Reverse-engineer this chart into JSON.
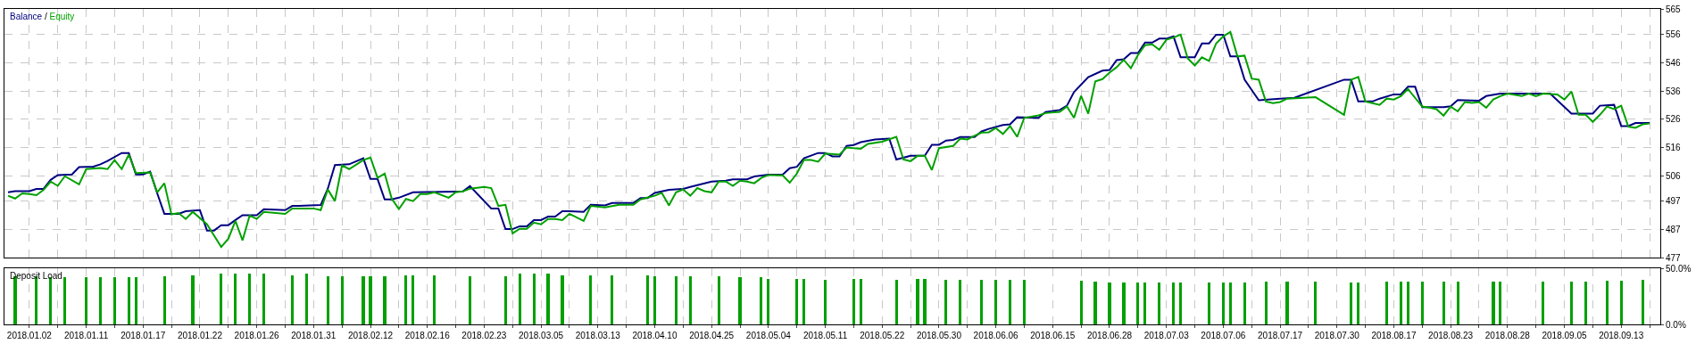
{
  "chart_data": [
    {
      "type": "line",
      "legend": "top left",
      "grid": true,
      "tick_labels": "y",
      "line_style": "solid",
      "annotations": [
        "/"
      ],
      "categories": [
        null,
        null,
        null,
        "2018.01.02",
        null,
        null,
        null,
        null,
        null,
        null,
        null,
        "2018.01.11",
        null,
        null,
        null,
        null,
        null,
        null,
        null,
        "2018.01.17",
        null,
        null,
        null,
        null,
        null,
        null,
        null,
        "2018.01.22",
        null,
        null,
        null,
        null,
        null,
        null,
        null,
        "2018.01.26",
        null,
        null,
        null,
        null,
        null,
        null,
        null,
        "2018.01.31",
        null,
        null,
        null,
        null,
        null,
        null,
        null,
        "2018.02.12",
        null,
        null,
        null,
        null,
        null,
        null,
        null,
        "2018.02.16",
        null,
        null,
        null,
        null,
        null,
        null,
        null,
        "2018.02.23",
        null,
        null,
        null,
        null,
        null,
        null,
        null,
        "2018.03.05",
        null,
        null,
        null,
        null,
        null,
        null,
        null,
        "2018.03.13",
        null,
        null,
        null,
        null,
        null,
        null,
        null,
        "2018.04.10",
        null,
        null,
        null,
        null,
        null,
        null,
        null,
        "2018.04.25",
        null,
        null,
        null,
        null,
        null,
        null,
        null,
        "2018.05.04",
        null,
        null,
        null,
        null,
        null,
        null,
        null,
        "2018.05.11",
        null,
        null,
        null,
        null,
        null,
        null,
        null,
        "2018.05.22",
        null,
        null,
        null,
        null,
        null,
        null,
        null,
        "2018.05.30",
        null,
        null,
        null,
        null,
        null,
        null,
        null,
        "2018.06.06",
        null,
        null,
        null,
        null,
        null,
        null,
        null,
        "2018.06.15",
        null,
        null,
        null,
        null,
        null,
        null,
        null,
        "2018.06.28",
        null,
        null,
        null,
        null,
        null,
        null,
        null,
        "2018.07.03",
        null,
        null,
        null,
        null,
        null,
        null,
        null,
        "2018.07.06",
        null,
        null,
        null,
        null,
        null,
        null,
        null,
        "2018.07.17",
        null,
        null,
        null,
        null,
        null,
        null,
        null,
        "2018.07.30",
        null,
        null,
        null,
        null,
        null,
        null,
        null,
        "2018.08.17",
        null,
        null,
        null,
        null,
        null,
        null,
        null,
        "2018.08.23",
        null,
        null,
        null,
        null,
        null,
        null,
        null,
        "2018.08.28",
        null,
        null,
        null,
        null,
        null,
        null,
        null,
        "2018.09.05",
        null,
        null,
        null,
        null,
        null,
        null,
        null,
        "2018.09.13",
        null,
        null,
        null,
        null,
        null
      ],
      "ylim": [
        477,
        565
      ],
      "yticks": [
        477,
        487,
        497,
        506,
        516,
        526,
        536,
        546,
        556,
        565
      ],
      "series": [
        {
          "name": "Balance",
          "color": "#000080",
          "values": [
            500.2,
            500.6,
            null,
            500.6,
            501.4,
            501.4,
            504.6,
            506.3,
            null,
            506.5,
            509.1,
            null,
            509.3,
            510.1,
            511.3,
            null,
            514.1,
            514.1,
            506.5,
            506.5,
            507.5,
            499.8,
            492.6,
            null,
            492.6,
            493.5,
            null,
            493.9,
            486.7,
            486.7,
            488.6,
            488.6,
            490.4,
            492.1,
            null,
            492.1,
            494.2,
            null,
            null,
            493.9,
            495.4,
            495.4,
            null,
            null,
            495.7,
            501.5,
            509.8,
            null,
            510.1,
            null,
            512.2,
            504.9,
            504.9,
            497.7,
            497.7,
            498.3,
            null,
            500.2,
            null,
            null,
            null,
            null,
            null,
            null,
            500.5,
            502.4,
            null,
            null,
            494.5,
            494.5,
            487.2,
            487.2,
            488.2,
            488.2,
            490.4,
            490.4,
            491.6,
            491.6,
            493.5,
            493.5,
            null,
            493.3,
            495.8,
            null,
            495.6,
            496.4,
            null,
            null,
            496.4,
            498.2,
            498.2,
            500,
            null,
            501.1,
            null,
            501.4,
            502.1,
            null,
            null,
            504,
            null,
            504.3,
            504.8,
            null,
            504.8,
            505.8,
            null,
            506.4,
            null,
            506.4,
            508.7,
            509.2,
            512.2,
            null,
            514.1,
            514.1,
            512.9,
            512.9,
            516.6,
            516.9,
            517.9,
            null,
            518.9,
            null,
            519.2,
            511.8,
            null,
            513.1,
            null,
            513.1,
            517,
            517,
            518.5,
            518.7,
            519.7,
            null,
            519.7,
            521.7,
            522.6,
            null,
            524,
            524.2,
            526.7,
            null,
            null,
            526.5,
            528.6,
            null,
            529.3,
            530.8,
            535.6,
            null,
            540.9,
            null,
            543.2,
            543.4,
            546.9,
            547.2,
            549.4,
            549.4,
            553.1,
            553.1,
            554.5,
            554.5,
            555.3,
            547.9,
            null,
            547.9,
            552.8,
            552.8,
            555.9,
            555.9,
            548.2,
            548.2,
            540,
            null,
            532.7,
            null,
            null,
            533.3,
            null,
            533.6,
            null,
            null,
            null,
            null,
            null,
            null,
            540,
            540,
            532.3,
            null,
            532.3,
            533.3,
            null,
            534.8,
            534.8,
            537.5,
            537.5,
            530.3,
            null,
            null,
            530.3,
            530.6,
            532.8,
            null,
            null,
            532.6,
            534.2,
            null,
            535.1,
            null,
            null,
            null,
            null,
            null,
            null,
            535.1,
            null,
            null,
            528,
            null,
            null,
            528,
            530.8,
            null,
            531.1,
            523.6,
            523.6,
            524.7,
            null,
            524.7,
            null
          ]
        },
        {
          "name": "Equity",
          "color": "#00a000",
          "values": [
            499,
            498,
            499.8,
            499.6,
            499.2,
            501.1,
            504,
            502.5,
            505.9,
            null,
            503,
            508.4,
            null,
            508.8,
            508.4,
            511.6,
            508.4,
            513.5,
            507,
            null,
            507.2,
            500.2,
            503.4,
            492.4,
            492.9,
            490.8,
            493.3,
            null,
            488.9,
            null,
            480.9,
            483.8,
            490.1,
            483.2,
            492,
            490.8,
            493.3,
            null,
            null,
            492.6,
            494.5,
            null,
            null,
            494.5,
            493.9,
            501.2,
            497.1,
            509.7,
            508.4,
            null,
            511.6,
            512.5,
            505.3,
            506.8,
            497.9,
            494.3,
            497.9,
            497.1,
            499.6,
            499.6,
            500.2,
            null,
            498.3,
            500.2,
            500.5,
            501.5,
            null,
            502.1,
            501.7,
            495.4,
            495.8,
            485.7,
            487.3,
            487.3,
            489.5,
            488.9,
            490.8,
            490.8,
            490.4,
            492.6,
            null,
            490.1,
            495.4,
            null,
            494.9,
            null,
            495.8,
            null,
            495.8,
            497.7,
            null,
            499,
            500,
            495.6,
            500.2,
            501.2,
            499,
            501.7,
            500.6,
            500.2,
            504,
            504,
            502.5,
            504.3,
            504,
            503.4,
            505.3,
            506.3,
            null,
            506.2,
            503.6,
            506.8,
            511.6,
            511.6,
            511,
            513.9,
            null,
            513.5,
            516,
            null,
            515.6,
            517.3,
            null,
            518.1,
            null,
            519.8,
            511.8,
            511.2,
            513.1,
            513.1,
            508.1,
            515.8,
            null,
            516.6,
            519.2,
            518.9,
            520.2,
            521.3,
            521.4,
            522.9,
            520.8,
            523.6,
            519.8,
            526.5,
            null,
            527.4,
            528.2,
            null,
            528.6,
            530.5,
            526.5,
            534.3,
            528,
            539.4,
            540.2,
            542.5,
            544.4,
            547,
            544.1,
            548.7,
            552.2,
            552.5,
            550.6,
            554.1,
            554.9,
            555.9,
            547.5,
            545,
            547.9,
            546.6,
            552.8,
            555.3,
            556.9,
            548.2,
            548.5,
            540.4,
            540,
            532.3,
            531.7,
            532.1,
            533.3,
            null,
            null,
            null,
            533.8,
            null,
            null,
            null,
            527.6,
            540,
            541,
            532.3,
            531.7,
            531.1,
            533.3,
            533,
            534.2,
            536.7,
            null,
            530.5,
            530.1,
            529.6,
            527.3,
            530.5,
            528.8,
            532.1,
            531.8,
            532.1,
            530.1,
            533,
            534.2,
            535.1,
            null,
            534.2,
            535.1,
            534.2,
            535.1,
            null,
            534.8,
            533,
            535.8,
            527.6,
            527.6,
            525.1,
            527.6,
            530.5,
            529.6,
            530.8,
            523.4,
            523,
            524.2,
            524.5,
            null
          ]
        }
      ]
    },
    {
      "type": "bar",
      "title": "Deposit Load",
      "grid": "x",
      "color": "#00a000",
      "categories": [
        null,
        null,
        null,
        "2018.01.02",
        null,
        null,
        null,
        null,
        null,
        null,
        null,
        "2018.01.11",
        null,
        null,
        null,
        null,
        null,
        null,
        null,
        "2018.01.17",
        null,
        null,
        null,
        null,
        null,
        null,
        null,
        "2018.01.22",
        null,
        null,
        null,
        null,
        null,
        null,
        null,
        "2018.01.26",
        null,
        null,
        null,
        null,
        null,
        null,
        null,
        "2018.01.31",
        null,
        null,
        null,
        null,
        null,
        null,
        null,
        "2018.02.12",
        null,
        null,
        null,
        null,
        null,
        null,
        null,
        "2018.02.16",
        null,
        null,
        null,
        null,
        null,
        null,
        null,
        "2018.02.23",
        null,
        null,
        null,
        null,
        null,
        null,
        null,
        "2018.03.05",
        null,
        null,
        null,
        null,
        null,
        null,
        null,
        "2018.03.13",
        null,
        null,
        null,
        null,
        null,
        null,
        null,
        "2018.04.10",
        null,
        null,
        null,
        null,
        null,
        null,
        null,
        "2018.04.25",
        null,
        null,
        null,
        null,
        null,
        null,
        null,
        "2018.05.04",
        null,
        null,
        null,
        null,
        null,
        null,
        null,
        "2018.05.11",
        null,
        null,
        null,
        null,
        null,
        null,
        null,
        "2018.05.22",
        null,
        null,
        null,
        null,
        null,
        null,
        null,
        "2018.05.30",
        null,
        null,
        null,
        null,
        null,
        null,
        null,
        "2018.06.06",
        null,
        null,
        null,
        null,
        null,
        null,
        null,
        "2018.06.15",
        null,
        null,
        null,
        null,
        null,
        null,
        null,
        "2018.06.28",
        null,
        null,
        null,
        null,
        null,
        null,
        null,
        "2018.07.03",
        null,
        null,
        null,
        null,
        null,
        null,
        null,
        "2018.07.06",
        null,
        null,
        null,
        null,
        null,
        null,
        null,
        "2018.07.17",
        null,
        null,
        null,
        null,
        null,
        null,
        null,
        "2018.07.30",
        null,
        null,
        null,
        null,
        null,
        null,
        null,
        "2018.08.17",
        null,
        null,
        null,
        null,
        null,
        null,
        null,
        "2018.08.23",
        null,
        null,
        null,
        null,
        null,
        null,
        null,
        "2018.08.28",
        null,
        null,
        null,
        null,
        null,
        null,
        null,
        "2018.09.05",
        null,
        null,
        null,
        null,
        null,
        null,
        null,
        "2018.09.13",
        null,
        null,
        null,
        null,
        null
      ],
      "ylim": [
        0,
        50
      ],
      "yticks": [
        {
          "value": 0,
          "label": "0.0%"
        },
        {
          "value": 50,
          "label": "50.0%"
        }
      ],
      "values": [
        null,
        42.6,
        null,
        null,
        42.6,
        null,
        41.7,
        null,
        41.7,
        null,
        null,
        41.7,
        null,
        41.7,
        null,
        41.7,
        null,
        41.7,
        41.7,
        null,
        null,
        null,
        42.6,
        null,
        null,
        null,
        44,
        null,
        null,
        null,
        44.9,
        null,
        44.9,
        null,
        44.9,
        null,
        44.9,
        null,
        null,
        null,
        44,
        null,
        44.9,
        null,
        null,
        43.1,
        null,
        42.6,
        null,
        null,
        42.6,
        42.6,
        null,
        43.1,
        null,
        null,
        44,
        44,
        null,
        null,
        44,
        null,
        null,
        null,
        null,
        43.1,
        null,
        null,
        null,
        null,
        43.1,
        null,
        44.9,
        null,
        44.9,
        null,
        44.9,
        null,
        44,
        null,
        null,
        null,
        44,
        null,
        null,
        44,
        null,
        null,
        null,
        null,
        44,
        43.1,
        null,
        null,
        43.1,
        null,
        43.1,
        null,
        null,
        null,
        42.6,
        null,
        null,
        41.7,
        null,
        null,
        41.7,
        40.7,
        null,
        null,
        null,
        40.7,
        40.7,
        null,
        null,
        39.8,
        null,
        null,
        null,
        40.3,
        40.7,
        null,
        null,
        null,
        null,
        39.4,
        null,
        null,
        40.3,
        40.3,
        null,
        null,
        39.4,
        null,
        39.4,
        null,
        null,
        39.4,
        null,
        39.4,
        null,
        39.4,
        null,
        39.4,
        null,
        null,
        null,
        null,
        null,
        null,
        null,
        38.9,
        null,
        38,
        null,
        37,
        null,
        37,
        null,
        37,
        37,
        null,
        37,
        null,
        37,
        37,
        null,
        null,
        null,
        37,
        null,
        37,
        37,
        null,
        37,
        null,
        null,
        38,
        null,
        null,
        38.4,
        null,
        null,
        null,
        38.4,
        null,
        null,
        null,
        null,
        37,
        37,
        null,
        null,
        null,
        38,
        null,
        38,
        38,
        null,
        38,
        null,
        null,
        38.4,
        null,
        38.4,
        null,
        null,
        null,
        null,
        38.4,
        38.4,
        null,
        null,
        null,
        null,
        null,
        38,
        null,
        null,
        null,
        38.4,
        null,
        38.4,
        null,
        null,
        38.9,
        null,
        38.9,
        null,
        null,
        39.4,
        null,
        null
      ]
    }
  ]
}
